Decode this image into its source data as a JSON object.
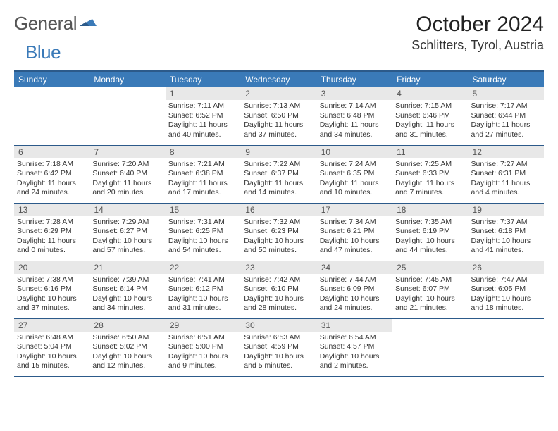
{
  "brand": {
    "part1": "General",
    "part2": "Blue"
  },
  "title": "October 2024",
  "location": "Schlitters, Tyrol, Austria",
  "colors": {
    "header_bg": "#3a7ab8",
    "header_text": "#ffffff",
    "border": "#2c5a8a",
    "daynum_bg": "#e8e8e8",
    "text": "#333333",
    "page_bg": "#ffffff"
  },
  "fonts": {
    "title_size": 30,
    "location_size": 18,
    "header_size": 12,
    "body_size": 10.5
  },
  "dayNames": [
    "Sunday",
    "Monday",
    "Tuesday",
    "Wednesday",
    "Thursday",
    "Friday",
    "Saturday"
  ],
  "weeks": [
    [
      {
        "empty": true
      },
      {
        "empty": true
      },
      {
        "num": "1",
        "sunrise": "Sunrise: 7:11 AM",
        "sunset": "Sunset: 6:52 PM",
        "day1": "Daylight: 11 hours",
        "day2": "and 40 minutes."
      },
      {
        "num": "2",
        "sunrise": "Sunrise: 7:13 AM",
        "sunset": "Sunset: 6:50 PM",
        "day1": "Daylight: 11 hours",
        "day2": "and 37 minutes."
      },
      {
        "num": "3",
        "sunrise": "Sunrise: 7:14 AM",
        "sunset": "Sunset: 6:48 PM",
        "day1": "Daylight: 11 hours",
        "day2": "and 34 minutes."
      },
      {
        "num": "4",
        "sunrise": "Sunrise: 7:15 AM",
        "sunset": "Sunset: 6:46 PM",
        "day1": "Daylight: 11 hours",
        "day2": "and 31 minutes."
      },
      {
        "num": "5",
        "sunrise": "Sunrise: 7:17 AM",
        "sunset": "Sunset: 6:44 PM",
        "day1": "Daylight: 11 hours",
        "day2": "and 27 minutes."
      }
    ],
    [
      {
        "num": "6",
        "sunrise": "Sunrise: 7:18 AM",
        "sunset": "Sunset: 6:42 PM",
        "day1": "Daylight: 11 hours",
        "day2": "and 24 minutes."
      },
      {
        "num": "7",
        "sunrise": "Sunrise: 7:20 AM",
        "sunset": "Sunset: 6:40 PM",
        "day1": "Daylight: 11 hours",
        "day2": "and 20 minutes."
      },
      {
        "num": "8",
        "sunrise": "Sunrise: 7:21 AM",
        "sunset": "Sunset: 6:38 PM",
        "day1": "Daylight: 11 hours",
        "day2": "and 17 minutes."
      },
      {
        "num": "9",
        "sunrise": "Sunrise: 7:22 AM",
        "sunset": "Sunset: 6:37 PM",
        "day1": "Daylight: 11 hours",
        "day2": "and 14 minutes."
      },
      {
        "num": "10",
        "sunrise": "Sunrise: 7:24 AM",
        "sunset": "Sunset: 6:35 PM",
        "day1": "Daylight: 11 hours",
        "day2": "and 10 minutes."
      },
      {
        "num": "11",
        "sunrise": "Sunrise: 7:25 AM",
        "sunset": "Sunset: 6:33 PM",
        "day1": "Daylight: 11 hours",
        "day2": "and 7 minutes."
      },
      {
        "num": "12",
        "sunrise": "Sunrise: 7:27 AM",
        "sunset": "Sunset: 6:31 PM",
        "day1": "Daylight: 11 hours",
        "day2": "and 4 minutes."
      }
    ],
    [
      {
        "num": "13",
        "sunrise": "Sunrise: 7:28 AM",
        "sunset": "Sunset: 6:29 PM",
        "day1": "Daylight: 11 hours",
        "day2": "and 0 minutes."
      },
      {
        "num": "14",
        "sunrise": "Sunrise: 7:29 AM",
        "sunset": "Sunset: 6:27 PM",
        "day1": "Daylight: 10 hours",
        "day2": "and 57 minutes."
      },
      {
        "num": "15",
        "sunrise": "Sunrise: 7:31 AM",
        "sunset": "Sunset: 6:25 PM",
        "day1": "Daylight: 10 hours",
        "day2": "and 54 minutes."
      },
      {
        "num": "16",
        "sunrise": "Sunrise: 7:32 AM",
        "sunset": "Sunset: 6:23 PM",
        "day1": "Daylight: 10 hours",
        "day2": "and 50 minutes."
      },
      {
        "num": "17",
        "sunrise": "Sunrise: 7:34 AM",
        "sunset": "Sunset: 6:21 PM",
        "day1": "Daylight: 10 hours",
        "day2": "and 47 minutes."
      },
      {
        "num": "18",
        "sunrise": "Sunrise: 7:35 AM",
        "sunset": "Sunset: 6:19 PM",
        "day1": "Daylight: 10 hours",
        "day2": "and 44 minutes."
      },
      {
        "num": "19",
        "sunrise": "Sunrise: 7:37 AM",
        "sunset": "Sunset: 6:18 PM",
        "day1": "Daylight: 10 hours",
        "day2": "and 41 minutes."
      }
    ],
    [
      {
        "num": "20",
        "sunrise": "Sunrise: 7:38 AM",
        "sunset": "Sunset: 6:16 PM",
        "day1": "Daylight: 10 hours",
        "day2": "and 37 minutes."
      },
      {
        "num": "21",
        "sunrise": "Sunrise: 7:39 AM",
        "sunset": "Sunset: 6:14 PM",
        "day1": "Daylight: 10 hours",
        "day2": "and 34 minutes."
      },
      {
        "num": "22",
        "sunrise": "Sunrise: 7:41 AM",
        "sunset": "Sunset: 6:12 PM",
        "day1": "Daylight: 10 hours",
        "day2": "and 31 minutes."
      },
      {
        "num": "23",
        "sunrise": "Sunrise: 7:42 AM",
        "sunset": "Sunset: 6:10 PM",
        "day1": "Daylight: 10 hours",
        "day2": "and 28 minutes."
      },
      {
        "num": "24",
        "sunrise": "Sunrise: 7:44 AM",
        "sunset": "Sunset: 6:09 PM",
        "day1": "Daylight: 10 hours",
        "day2": "and 24 minutes."
      },
      {
        "num": "25",
        "sunrise": "Sunrise: 7:45 AM",
        "sunset": "Sunset: 6:07 PM",
        "day1": "Daylight: 10 hours",
        "day2": "and 21 minutes."
      },
      {
        "num": "26",
        "sunrise": "Sunrise: 7:47 AM",
        "sunset": "Sunset: 6:05 PM",
        "day1": "Daylight: 10 hours",
        "day2": "and 18 minutes."
      }
    ],
    [
      {
        "num": "27",
        "sunrise": "Sunrise: 6:48 AM",
        "sunset": "Sunset: 5:04 PM",
        "day1": "Daylight: 10 hours",
        "day2": "and 15 minutes."
      },
      {
        "num": "28",
        "sunrise": "Sunrise: 6:50 AM",
        "sunset": "Sunset: 5:02 PM",
        "day1": "Daylight: 10 hours",
        "day2": "and 12 minutes."
      },
      {
        "num": "29",
        "sunrise": "Sunrise: 6:51 AM",
        "sunset": "Sunset: 5:00 PM",
        "day1": "Daylight: 10 hours",
        "day2": "and 9 minutes."
      },
      {
        "num": "30",
        "sunrise": "Sunrise: 6:53 AM",
        "sunset": "Sunset: 4:59 PM",
        "day1": "Daylight: 10 hours",
        "day2": "and 5 minutes."
      },
      {
        "num": "31",
        "sunrise": "Sunrise: 6:54 AM",
        "sunset": "Sunset: 4:57 PM",
        "day1": "Daylight: 10 hours",
        "day2": "and 2 minutes."
      },
      {
        "empty": true
      },
      {
        "empty": true
      }
    ]
  ]
}
